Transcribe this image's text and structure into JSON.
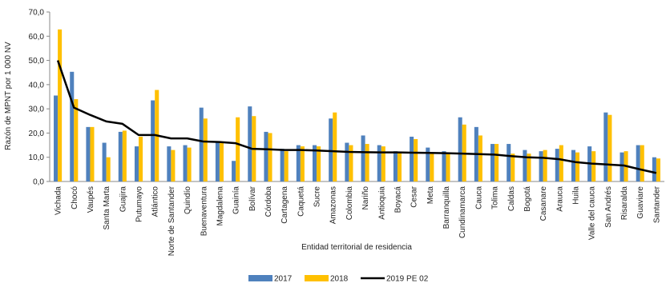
{
  "chart_data": {
    "type": "bar",
    "xlabel": "Entidad territorial de residencia",
    "ylabel": "Razón de MPNT por 1 000 NV",
    "ylim": [
      0,
      70
    ],
    "yticks": [
      "0,0",
      "10,0",
      "20,0",
      "30,0",
      "40,0",
      "50,0",
      "60,0",
      "70,0"
    ],
    "grid": false,
    "legend": "bottom",
    "categories": [
      "Vichada",
      "Chocó",
      "Vaupés",
      "Santa Marta",
      "Guajira",
      "Putumayo",
      "Atlántico",
      "Norte de Santander",
      "Quindío",
      "Buenaventura",
      "Magdalena",
      "Guainía",
      "Bolívar",
      "Córdoba",
      "Cartagena",
      "Caquetá",
      "Sucre",
      "Amazonas",
      "Colombia",
      "Nariño",
      "Antioquia",
      "Boyacá",
      "Cesar",
      "Meta",
      "Barranquilla",
      "Cundinamarca",
      "Cauca",
      "Tolima",
      "Caldas",
      "Bogotá",
      "Casanare",
      "Arauca",
      "Huila",
      "Valle del cauca",
      "San Andrés",
      "Risaralda",
      "Guaviare",
      "Santander"
    ],
    "series": [
      {
        "name": "2017",
        "kind": "bar",
        "color": "#4f81bd",
        "values": [
          35.5,
          45.3,
          22.5,
          16.0,
          20.5,
          14.5,
          33.5,
          14.5,
          15.0,
          30.5,
          16.5,
          8.5,
          31.0,
          20.5,
          13.5,
          15.0,
          15.0,
          26.0,
          16.0,
          19.0,
          15.0,
          12.5,
          18.5,
          14.0,
          12.5,
          26.5,
          22.5,
          15.5,
          15.5,
          13.0,
          12.5,
          13.5,
          13.0,
          14.5,
          28.5,
          12.0,
          15.0,
          10.0
        ]
      },
      {
        "name": "2018",
        "kind": "bar",
        "color": "#ffc000",
        "values": [
          62.8,
          34.0,
          22.5,
          10.0,
          21.0,
          18.5,
          37.8,
          13.0,
          14.0,
          26.0,
          16.5,
          26.5,
          27.0,
          20.0,
          12.5,
          14.5,
          14.5,
          28.5,
          15.0,
          15.5,
          14.5,
          12.0,
          17.5,
          12.0,
          12.0,
          23.5,
          19.0,
          15.5,
          11.5,
          11.5,
          13.0,
          15.0,
          12.0,
          12.5,
          27.5,
          12.5,
          15.0,
          9.5
        ]
      },
      {
        "name": "2019 PE 02",
        "kind": "line",
        "color": "#000000",
        "values": [
          50.0,
          30.5,
          27.5,
          24.8,
          23.8,
          19.2,
          19.2,
          17.8,
          17.8,
          16.5,
          16.3,
          15.8,
          13.5,
          13.3,
          13.0,
          13.0,
          12.8,
          12.5,
          12.2,
          12.1,
          12.0,
          12.0,
          11.9,
          11.8,
          11.7,
          11.5,
          11.3,
          11.1,
          10.5,
          10.0,
          9.8,
          9.2,
          8.0,
          7.4,
          7.0,
          6.6,
          5.0,
          3.5
        ]
      }
    ]
  }
}
